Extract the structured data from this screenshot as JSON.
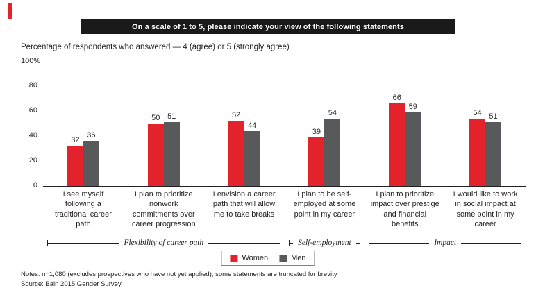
{
  "banner": {
    "title": "On a scale of 1 to 5, please indicate your view of the following statements"
  },
  "subtitle": "Percentage of respondents who answered — 4 (agree) or 5 (strongly agree)",
  "y_axis_top_label": "100%",
  "chart_data": {
    "type": "bar",
    "categories": [
      "I see myself following a traditional career path",
      "I plan to prioritize nonwork commitments over career progression",
      "I envision a career path that will allow me to take breaks",
      "I plan to be self-employed at some point in my career",
      "I plan to prioritize impact over prestige and financial benefits",
      "I would like to work in social impact at some point in my career"
    ],
    "series": [
      {
        "name": "Women",
        "color": "#e4222b",
        "values": [
          32,
          50,
          52,
          39,
          66,
          54
        ]
      },
      {
        "name": "Men",
        "color": "#58595b",
        "values": [
          36,
          51,
          44,
          54,
          59,
          51
        ]
      }
    ],
    "ylim": [
      0,
      100
    ],
    "yticks": [
      0,
      20,
      40,
      60,
      80
    ],
    "grid": false,
    "legend_position": "bottom",
    "groups": [
      {
        "label": "Flexibility of career path",
        "span": [
          0,
          2
        ]
      },
      {
        "label": "Self-employment",
        "span": [
          3,
          3
        ]
      },
      {
        "label": "Impact",
        "span": [
          4,
          5
        ]
      }
    ]
  },
  "notes": {
    "line1": "Notes: n=1,080 (excludes prospectives who have not yet applied); some statements are truncated for brevity",
    "line2": "Source: Bain 2015 Gender Survey"
  }
}
